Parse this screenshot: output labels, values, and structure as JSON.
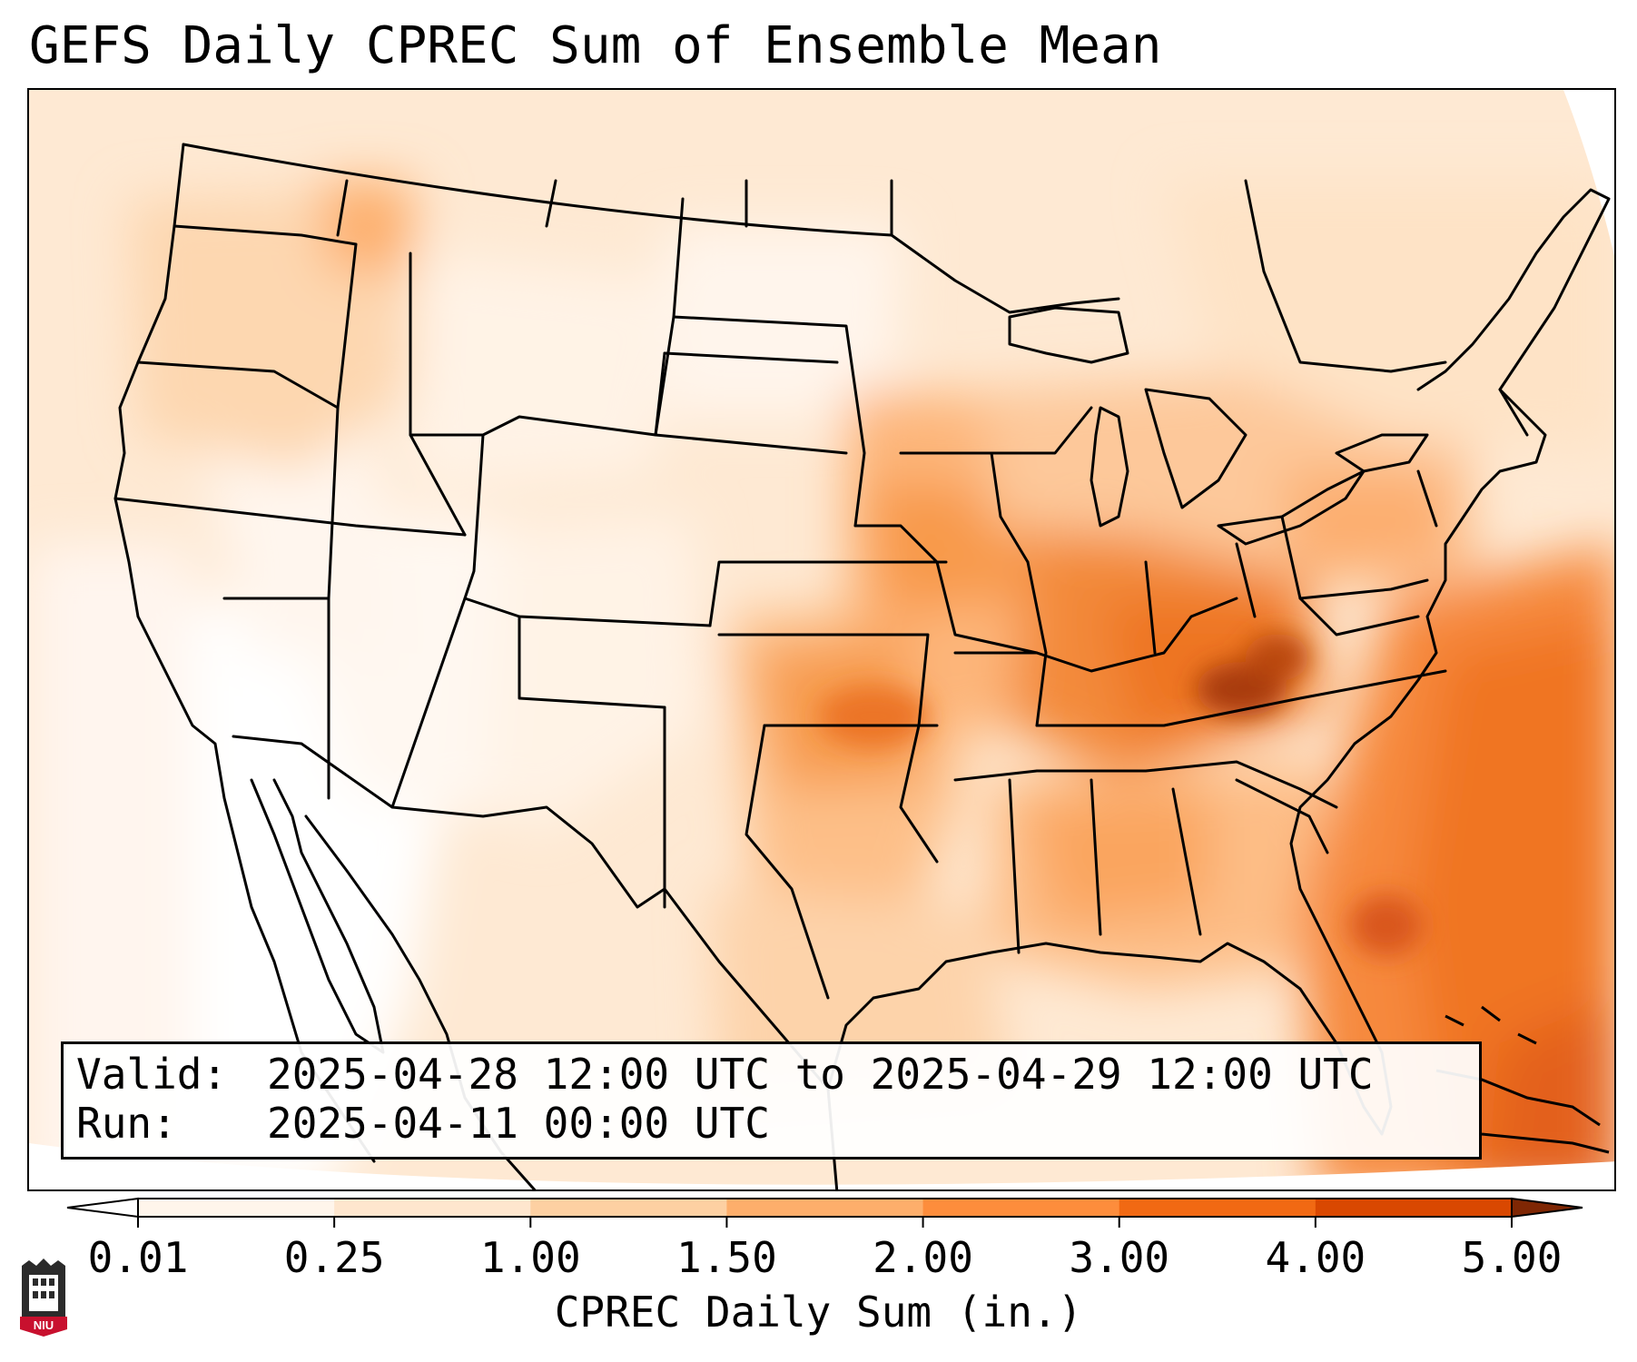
{
  "title": "GEFS Daily CPREC Sum of Ensemble Mean",
  "info": {
    "valid_label": "Valid:",
    "valid_value": "2025-04-28 12:00 UTC to 2025-04-29 12:00 UTC",
    "run_label": "Run:",
    "run_value": "2025-04-11 00:00 UTC"
  },
  "colorbar": {
    "title": "CPREC Daily Sum (in.)",
    "ticks": [
      "0.01",
      "0.25",
      "1.00",
      "1.50",
      "2.00",
      "3.00",
      "4.00",
      "5.00"
    ],
    "colors": [
      "#fff5eb",
      "#fee6ce",
      "#fdd0a2",
      "#fdae6b",
      "#fd8d3c",
      "#f16913",
      "#d94801",
      "#8c2d04"
    ],
    "under_color": "#ffffff",
    "over_color": "#7f2704"
  },
  "logo": {
    "text": "NIU",
    "color": "#c8102e"
  }
}
